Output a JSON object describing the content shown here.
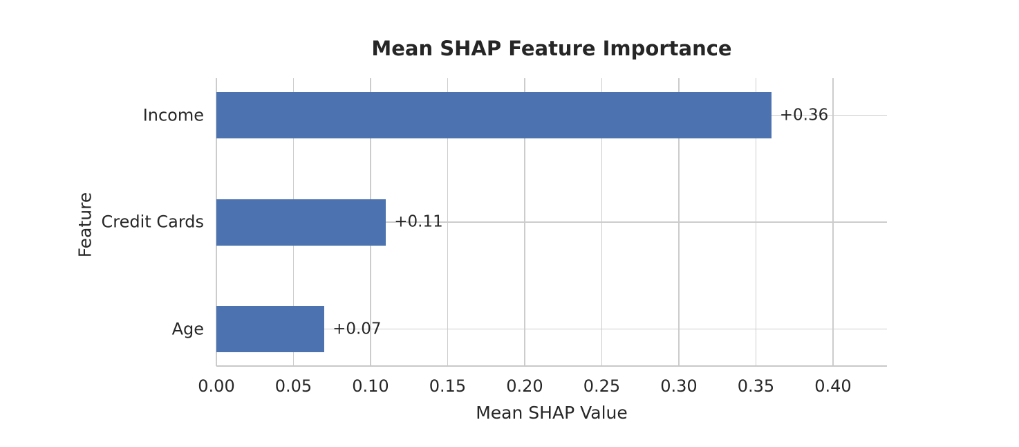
{
  "chart_data": {
    "type": "bar",
    "orientation": "horizontal",
    "title": "Mean SHAP Feature Importance",
    "xlabel": "Mean SHAP Value",
    "ylabel": "Feature",
    "categories": [
      "Income",
      "Credit Cards",
      "Age"
    ],
    "values": [
      0.36,
      0.11,
      0.07
    ],
    "bar_labels": [
      "+0.36",
      "+0.11",
      "+0.07"
    ],
    "xlim": [
      0,
      0.435
    ],
    "x_ticks": [
      0,
      0.05,
      0.1,
      0.15,
      0.2,
      0.25,
      0.3,
      0.35,
      0.4
    ],
    "x_tick_labels": [
      "0.00",
      "0.05",
      "0.10",
      "0.15",
      "0.20",
      "0.25",
      "0.30",
      "0.35",
      "0.40"
    ],
    "grid": "both",
    "legend": "none",
    "colors": {
      "bar": "#4c72b0",
      "grid": "#cccccc",
      "spine": "#c8c8c8",
      "text": "#262626",
      "background": "#ffffff"
    }
  }
}
